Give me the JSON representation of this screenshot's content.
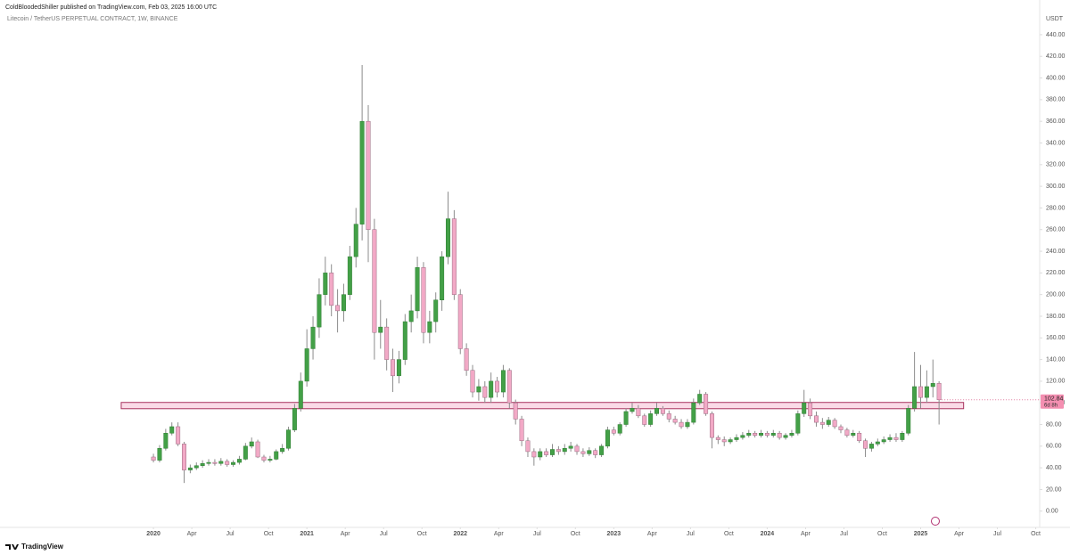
{
  "chart_data": {
    "type": "candlestick",
    "publisher_line": "ColdBloodedShiller published on TradingView.com, Feb 03, 2025 16:00 UTC",
    "title": "Litecoin / TetherUS PERPETUAL CONTRACT, 1W, BINANCE",
    "y_unit": "USDT",
    "brand": "TradingView",
    "countdown": "6d 8h",
    "last_price": 102.84,
    "up_color": "#43a047",
    "down_color": "#f2a9c6",
    "wick_color": "#8c8c8c",
    "grid": false,
    "xlim": [
      2019,
      2025.77
    ],
    "ylim": [
      -15,
      449
    ],
    "xticks": [
      {
        "value": 2020,
        "label": "2020"
      },
      {
        "value": 2020.25,
        "label": "Apr"
      },
      {
        "value": 2020.5,
        "label": "Jul"
      },
      {
        "value": 2020.75,
        "label": "Oct"
      },
      {
        "value": 2021,
        "label": "2021"
      },
      {
        "value": 2021.25,
        "label": "Apr"
      },
      {
        "value": 2021.5,
        "label": "Jul"
      },
      {
        "value": 2021.75,
        "label": "Oct"
      },
      {
        "value": 2022,
        "label": "2022"
      },
      {
        "value": 2022.25,
        "label": "Apr"
      },
      {
        "value": 2022.5,
        "label": "Jul"
      },
      {
        "value": 2022.75,
        "label": "Oct"
      },
      {
        "value": 2023,
        "label": "2023"
      },
      {
        "value": 2023.25,
        "label": "Apr"
      },
      {
        "value": 2023.5,
        "label": "Jul"
      },
      {
        "value": 2023.75,
        "label": "Oct"
      },
      {
        "value": 2024,
        "label": "2024"
      },
      {
        "value": 2024.25,
        "label": "Apr"
      },
      {
        "value": 2024.5,
        "label": "Jul"
      },
      {
        "value": 2024.75,
        "label": "Oct"
      },
      {
        "value": 2025,
        "label": "2025"
      },
      {
        "value": 2025.25,
        "label": "Apr"
      },
      {
        "value": 2025.5,
        "label": "Jul"
      },
      {
        "value": 2025.75,
        "label": "Oct"
      }
    ],
    "yticks": [
      {
        "value": 0,
        "label": "0.00"
      },
      {
        "value": 20,
        "label": "20.00"
      },
      {
        "value": 40,
        "label": "40.00"
      },
      {
        "value": 60,
        "label": "60.00"
      },
      {
        "value": 80,
        "label": "80.00"
      },
      {
        "value": 100,
        "label": "100.00"
      },
      {
        "value": 120,
        "label": "120.00"
      },
      {
        "value": 140,
        "label": "140.00"
      },
      {
        "value": 160,
        "label": "160.00"
      },
      {
        "value": 180,
        "label": "180.00"
      },
      {
        "value": 200,
        "label": "200.00"
      },
      {
        "value": 220,
        "label": "220.00"
      },
      {
        "value": 240,
        "label": "240.00"
      },
      {
        "value": 260,
        "label": "260.00"
      },
      {
        "value": 280,
        "label": "280.00"
      },
      {
        "value": 300,
        "label": "300.00"
      },
      {
        "value": 320,
        "label": "320.00"
      },
      {
        "value": 340,
        "label": "340.00"
      },
      {
        "value": 360,
        "label": "360.00"
      },
      {
        "value": 380,
        "label": "380.00"
      },
      {
        "value": 400,
        "label": "400.00"
      },
      {
        "value": 420,
        "label": "420.00"
      },
      {
        "value": 440,
        "label": "440.00"
      }
    ],
    "zone": {
      "top": 100.4,
      "bottom": 94.6,
      "x": [
        2019.79,
        2025.28
      ],
      "fill": "#fadbe7",
      "stroke": "#a8325e"
    },
    "x": [
      2020,
      2020.04,
      2020.08,
      2020.12,
      2020.16,
      2020.2,
      2020.24,
      2020.28,
      2020.32,
      2020.36,
      2020.4,
      2020.44,
      2020.48,
      2020.52,
      2020.56,
      2020.6,
      2020.64,
      2020.68,
      2020.72,
      2020.76,
      2020.8,
      2020.84,
      2020.88,
      2020.92,
      2020.96,
      2021,
      2021.04,
      2021.08,
      2021.12,
      2021.16,
      2021.2,
      2021.24,
      2021.28,
      2021.32,
      2021.36,
      2021.4,
      2021.44,
      2021.48,
      2021.52,
      2021.56,
      2021.6,
      2021.64,
      2021.68,
      2021.72,
      2021.76,
      2021.8,
      2021.84,
      2021.88,
      2021.92,
      2021.96,
      2022,
      2022.04,
      2022.08,
      2022.12,
      2022.16,
      2022.2,
      2022.24,
      2022.28,
      2022.32,
      2022.36,
      2022.4,
      2022.44,
      2022.48,
      2022.52,
      2022.56,
      2022.6,
      2022.64,
      2022.68,
      2022.72,
      2022.76,
      2022.8,
      2022.84,
      2022.88,
      2022.92,
      2022.96,
      2023,
      2023.04,
      2023.08,
      2023.12,
      2023.16,
      2023.2,
      2023.24,
      2023.28,
      2023.32,
      2023.36,
      2023.4,
      2023.44,
      2023.48,
      2023.52,
      2023.56,
      2023.6,
      2023.64,
      2023.68,
      2023.72,
      2023.76,
      2023.8,
      2023.84,
      2023.88,
      2023.92,
      2023.96,
      2024,
      2024.04,
      2024.08,
      2024.12,
      2024.16,
      2024.2,
      2024.24,
      2024.28,
      2024.32,
      2024.36,
      2024.4,
      2024.44,
      2024.48,
      2024.52,
      2024.56,
      2024.6,
      2024.64,
      2024.68,
      2024.72,
      2024.76,
      2024.8,
      2024.84,
      2024.88,
      2024.92,
      2024.96,
      2025,
      2025.04,
      2025.08,
      2025.12
    ],
    "open": [
      50,
      47,
      58,
      72,
      78,
      62,
      38,
      40,
      42,
      44,
      45,
      44,
      46,
      43,
      45,
      48,
      60,
      64,
      50,
      47,
      48,
      55,
      58,
      75,
      95,
      120,
      150,
      170,
      200,
      220,
      190,
      185,
      200,
      235,
      265,
      360,
      260,
      165,
      170,
      140,
      125,
      140,
      175,
      185,
      225,
      165,
      175,
      195,
      235,
      270,
      200,
      150,
      130,
      110,
      115,
      105,
      120,
      110,
      130,
      100,
      85,
      65,
      55,
      50,
      55,
      52,
      57,
      55,
      58,
      60,
      55,
      53,
      56,
      52,
      60,
      75,
      72,
      80,
      92,
      95,
      88,
      80,
      90,
      95,
      90,
      85,
      82,
      78,
      82,
      100,
      108,
      90,
      68,
      66,
      64,
      66,
      68,
      70,
      72,
      70,
      72,
      70,
      72,
      68,
      70,
      72,
      90,
      100,
      88,
      82,
      80,
      84,
      78,
      75,
      70,
      72,
      65,
      58,
      62,
      64,
      66,
      68,
      66,
      72,
      95,
      115,
      105,
      115,
      118
    ],
    "high": [
      53,
      61,
      76,
      82,
      82,
      64,
      43,
      45,
      47,
      48,
      48,
      49,
      48,
      47,
      51,
      63,
      68,
      66,
      52,
      51,
      57,
      62,
      78,
      99,
      128,
      168,
      180,
      215,
      235,
      228,
      205,
      210,
      245,
      280,
      412,
      375,
      270,
      195,
      178,
      150,
      148,
      182,
      200,
      235,
      230,
      185,
      202,
      240,
      295,
      278,
      205,
      155,
      135,
      122,
      120,
      128,
      124,
      135,
      132,
      103,
      88,
      68,
      58,
      58,
      58,
      62,
      60,
      62,
      64,
      62,
      58,
      59,
      58,
      62,
      78,
      78,
      82,
      95,
      100,
      98,
      90,
      93,
      100,
      97,
      93,
      88,
      85,
      85,
      104,
      112,
      110,
      92,
      70,
      69,
      68,
      71,
      73,
      75,
      74,
      75,
      74,
      75,
      74,
      72,
      75,
      93,
      112,
      104,
      92,
      86,
      87,
      86,
      80,
      77,
      75,
      74,
      67,
      64,
      67,
      69,
      71,
      72,
      74,
      98,
      147,
      135,
      130,
      140,
      120
    ],
    "low": [
      45,
      45,
      56,
      70,
      60,
      26,
      35,
      38,
      40,
      42,
      42,
      42,
      41,
      41,
      43,
      47,
      58,
      49,
      45,
      45,
      47,
      53,
      56,
      73,
      92,
      115,
      140,
      160,
      190,
      180,
      165,
      175,
      195,
      225,
      250,
      230,
      140,
      150,
      130,
      110,
      118,
      135,
      165,
      178,
      155,
      155,
      165,
      185,
      228,
      195,
      145,
      125,
      105,
      102,
      100,
      100,
      105,
      105,
      95,
      80,
      60,
      50,
      42,
      47,
      50,
      50,
      52,
      52,
      55,
      52,
      50,
      51,
      49,
      50,
      58,
      70,
      70,
      78,
      90,
      86,
      78,
      78,
      88,
      88,
      82,
      80,
      76,
      76,
      80,
      98,
      88,
      58,
      62,
      60,
      62,
      64,
      66,
      68,
      68,
      68,
      68,
      68,
      66,
      66,
      68,
      70,
      87,
      85,
      78,
      76,
      78,
      76,
      72,
      68,
      68,
      63,
      50,
      55,
      60,
      62,
      64,
      64,
      64,
      70,
      92,
      95,
      100,
      105,
      80
    ],
    "close": [
      47,
      58,
      72,
      78,
      62,
      38,
      40,
      42,
      44,
      45,
      44,
      46,
      43,
      45,
      48,
      60,
      64,
      50,
      47,
      48,
      55,
      58,
      75,
      95,
      120,
      150,
      170,
      200,
      220,
      190,
      185,
      200,
      235,
      265,
      360,
      260,
      165,
      170,
      140,
      125,
      140,
      175,
      185,
      225,
      165,
      175,
      195,
      235,
      270,
      200,
      150,
      130,
      110,
      115,
      105,
      120,
      110,
      130,
      100,
      85,
      65,
      55,
      50,
      55,
      52,
      57,
      55,
      58,
      60,
      55,
      53,
      56,
      52,
      60,
      75,
      72,
      80,
      92,
      95,
      88,
      80,
      90,
      95,
      90,
      85,
      82,
      78,
      82,
      100,
      108,
      90,
      68,
      66,
      64,
      66,
      68,
      70,
      72,
      70,
      72,
      70,
      72,
      68,
      70,
      72,
      90,
      100,
      88,
      82,
      80,
      84,
      78,
      75,
      70,
      72,
      65,
      58,
      62,
      64,
      66,
      68,
      66,
      72,
      95,
      115,
      105,
      115,
      118,
      102.84
    ]
  }
}
